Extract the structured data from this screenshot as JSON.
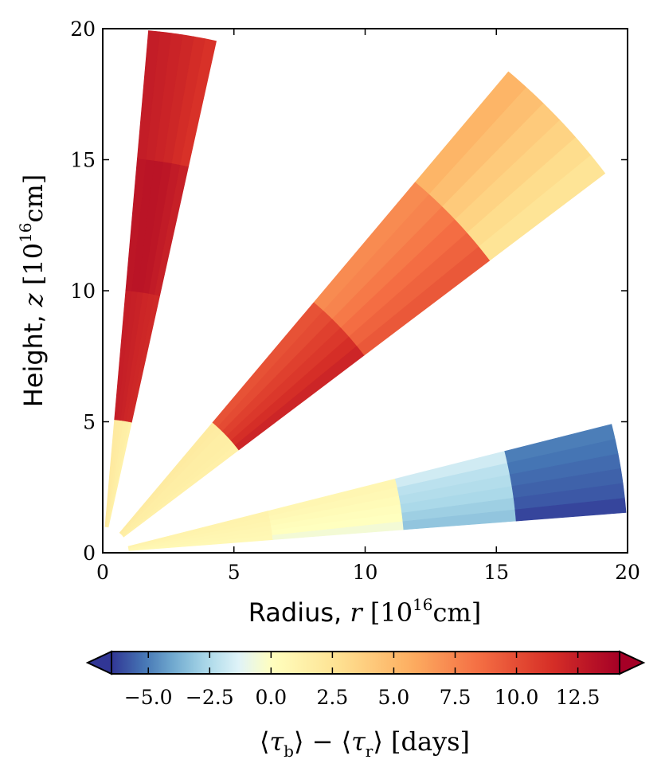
{
  "chart_data": {
    "type": "heatmap",
    "title": "",
    "xlabel": {
      "prefix": "Radius, ",
      "var": "r",
      "unit_open": " [10",
      "unit_exp": "16",
      "unit_close": "cm]"
    },
    "ylabel": {
      "prefix": "Height, ",
      "var": "z",
      "unit_open": " [10",
      "unit_exp": "16",
      "unit_close": "cm]"
    },
    "xlim": [
      0,
      20
    ],
    "ylim": [
      0,
      20
    ],
    "xticks": [
      "0",
      "5",
      "10",
      "15",
      "20"
    ],
    "yticks": [
      "0",
      "5",
      "10",
      "15",
      "20"
    ],
    "grid": false,
    "colorbar": {
      "vmin": -6.5,
      "vmax": 14.2,
      "ticks": [
        -5.0,
        -2.5,
        0.0,
        2.5,
        5.0,
        7.5,
        10.0,
        12.5
      ],
      "tick_labels": [
        "−5.0",
        "−2.5",
        "0.0",
        "2.5",
        "5.0",
        "7.5",
        "10.0",
        "12.5"
      ],
      "extend": "both",
      "colormap": "RdYlBu_r",
      "label": {
        "b_open": "⟨",
        "tau_b": "τ",
        "sub_b": "b",
        "b_close": "⟩",
        "minus": " − ",
        "r_open": "⟨",
        "tau_r": "τ",
        "sub_r": "r",
        "r_close": "⟩",
        "unit": " [days]"
      }
    },
    "wedges": [
      {
        "name": "wedge-steep",
        "angle_min_deg": 77.5,
        "angle_max_deg": 85.0,
        "radial_edges": [
          1.0,
          5.1,
          10.05,
          15.1,
          20.0
        ],
        "values": [
          [
            1.3,
            1.5,
            1.6,
            1.7,
            1.8,
            1.9
          ],
          [
            11.8,
            11.9,
            12.0,
            12.2,
            12.3,
            12.4
          ],
          [
            12.3,
            12.6,
            12.9,
            13.0,
            13.0,
            12.9
          ],
          [
            11.3,
            11.6,
            11.9,
            12.1,
            12.3,
            12.5
          ]
        ]
      },
      {
        "name": "wedge-mid",
        "angle_min_deg": 37.1,
        "angle_max_deg": 49.9,
        "radial_edges": [
          1.0,
          6.5,
          12.5,
          18.5,
          24.0
        ],
        "values": [
          [
            1.4,
            1.5,
            1.6,
            1.6,
            1.7,
            1.8
          ],
          [
            12.0,
            11.5,
            11.0,
            10.6,
            10.1,
            9.8
          ],
          [
            9.5,
            9.0,
            8.5,
            8.0,
            7.5,
            7.2
          ],
          [
            2.5,
            3.0,
            3.6,
            4.1,
            4.7,
            5.3
          ]
        ]
      },
      {
        "name": "wedge-low",
        "angle_min_deg": 4.4,
        "angle_max_deg": 14.2,
        "radial_edges": [
          1.0,
          6.5,
          11.5,
          15.8,
          20.0
        ],
        "values": [
          [
            0.6,
            0.7,
            0.8,
            0.9,
            1.0,
            1.1
          ],
          [
            -0.5,
            0.0,
            0.2,
            0.4,
            0.6,
            0.8
          ],
          [
            -3.2,
            -2.9,
            -2.6,
            -2.4,
            -2.2,
            -1.7
          ],
          [
            -6.2,
            -5.8,
            -5.6,
            -5.4,
            -5.2,
            -5.0
          ]
        ]
      }
    ]
  }
}
